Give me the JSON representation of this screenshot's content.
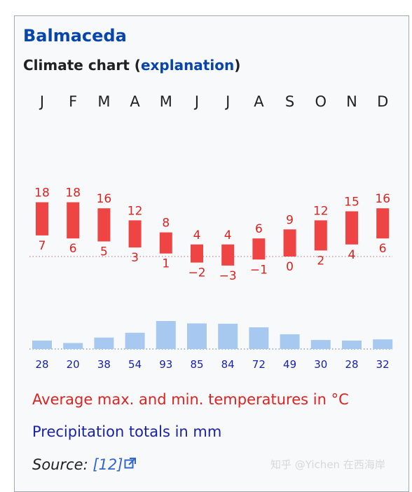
{
  "title": "Balmaceda",
  "subtitle": {
    "prefix": "Climate chart (",
    "link": "explanation",
    "suffix": ")"
  },
  "legend": {
    "temperature": "Average max. and min. temperatures in °C",
    "precipitation": "Precipitation totals in mm"
  },
  "source": {
    "label": "Source:",
    "ref": "[12]"
  },
  "watermark": "知乎 @Yichen 在西海岸",
  "colors": {
    "temp_bar": "#ee4444",
    "temp_text": "#dd2222",
    "precip_bar": "#a8c9ef",
    "precip_text": "#1a22aa",
    "link": "#0645ad"
  },
  "chart_data": {
    "type": "bar",
    "categories": [
      "J",
      "F",
      "M",
      "A",
      "M",
      "J",
      "J",
      "A",
      "S",
      "O",
      "N",
      "D"
    ],
    "series": [
      {
        "max": [
          18,
          18,
          16,
          12,
          8,
          4,
          4,
          6,
          9,
          12,
          15,
          16
        ]
      },
      {
        "min": [
          7,
          6,
          5,
          3,
          1,
          -2,
          -3,
          -1,
          0,
          2,
          4,
          6
        ]
      },
      {
        "precipitation": [
          28,
          20,
          38,
          54,
          93,
          85,
          84,
          72,
          49,
          30,
          28,
          32
        ]
      }
    ],
    "units": {
      "temperature": "°C",
      "precipitation": "mm"
    }
  }
}
